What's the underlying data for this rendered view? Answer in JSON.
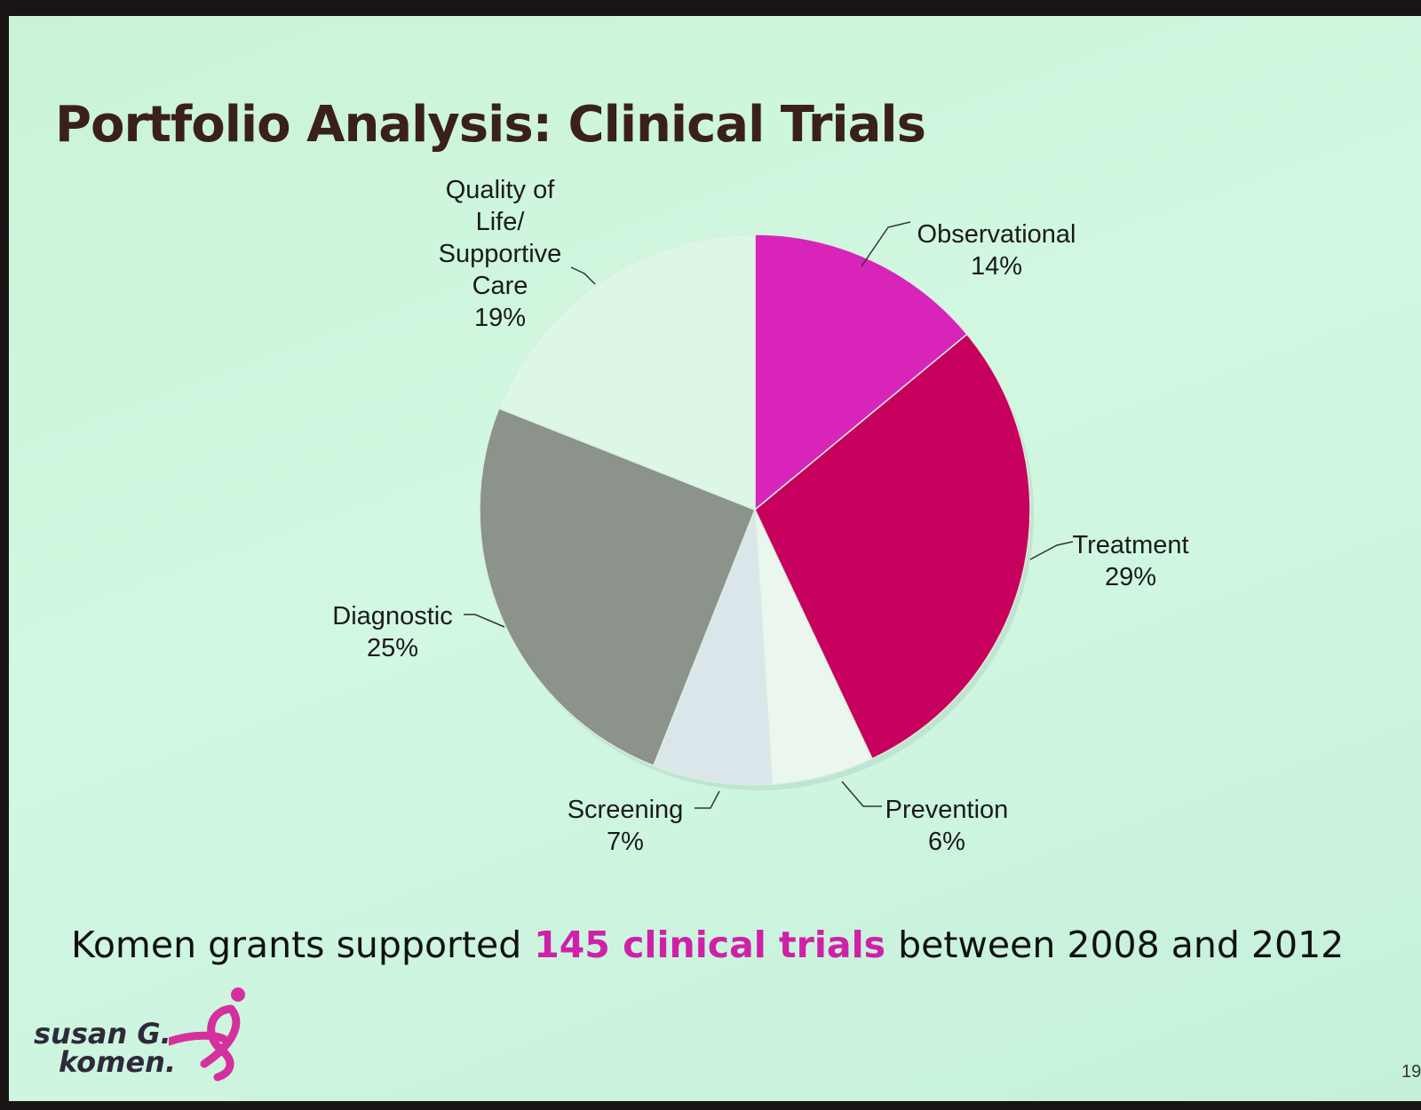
{
  "chart_data": {
    "type": "pie",
    "title": "Portfolio Analysis: Clinical Trials",
    "categories": [
      "Observational",
      "Treatment",
      "Prevention",
      "Screening",
      "Diagnostic",
      "Quality of Life/ Supportive Care"
    ],
    "values": [
      14,
      29,
      6,
      7,
      25,
      19
    ],
    "value_labels": [
      "14%",
      "29%",
      "6%",
      "7%",
      "25%",
      "19%"
    ],
    "colors": [
      "#d824b8",
      "#c6005c",
      "#eaf6ee",
      "#dbe6ea",
      "#8b938b",
      "#dcf7e6"
    ]
  },
  "caption": {
    "before": "Komen grants supported",
    "highlight": "145 clinical trials",
    "after": "between 2008 and 2012"
  },
  "logo": {
    "line1": "susan G.",
    "line2": "komen."
  },
  "slide_number": "19"
}
